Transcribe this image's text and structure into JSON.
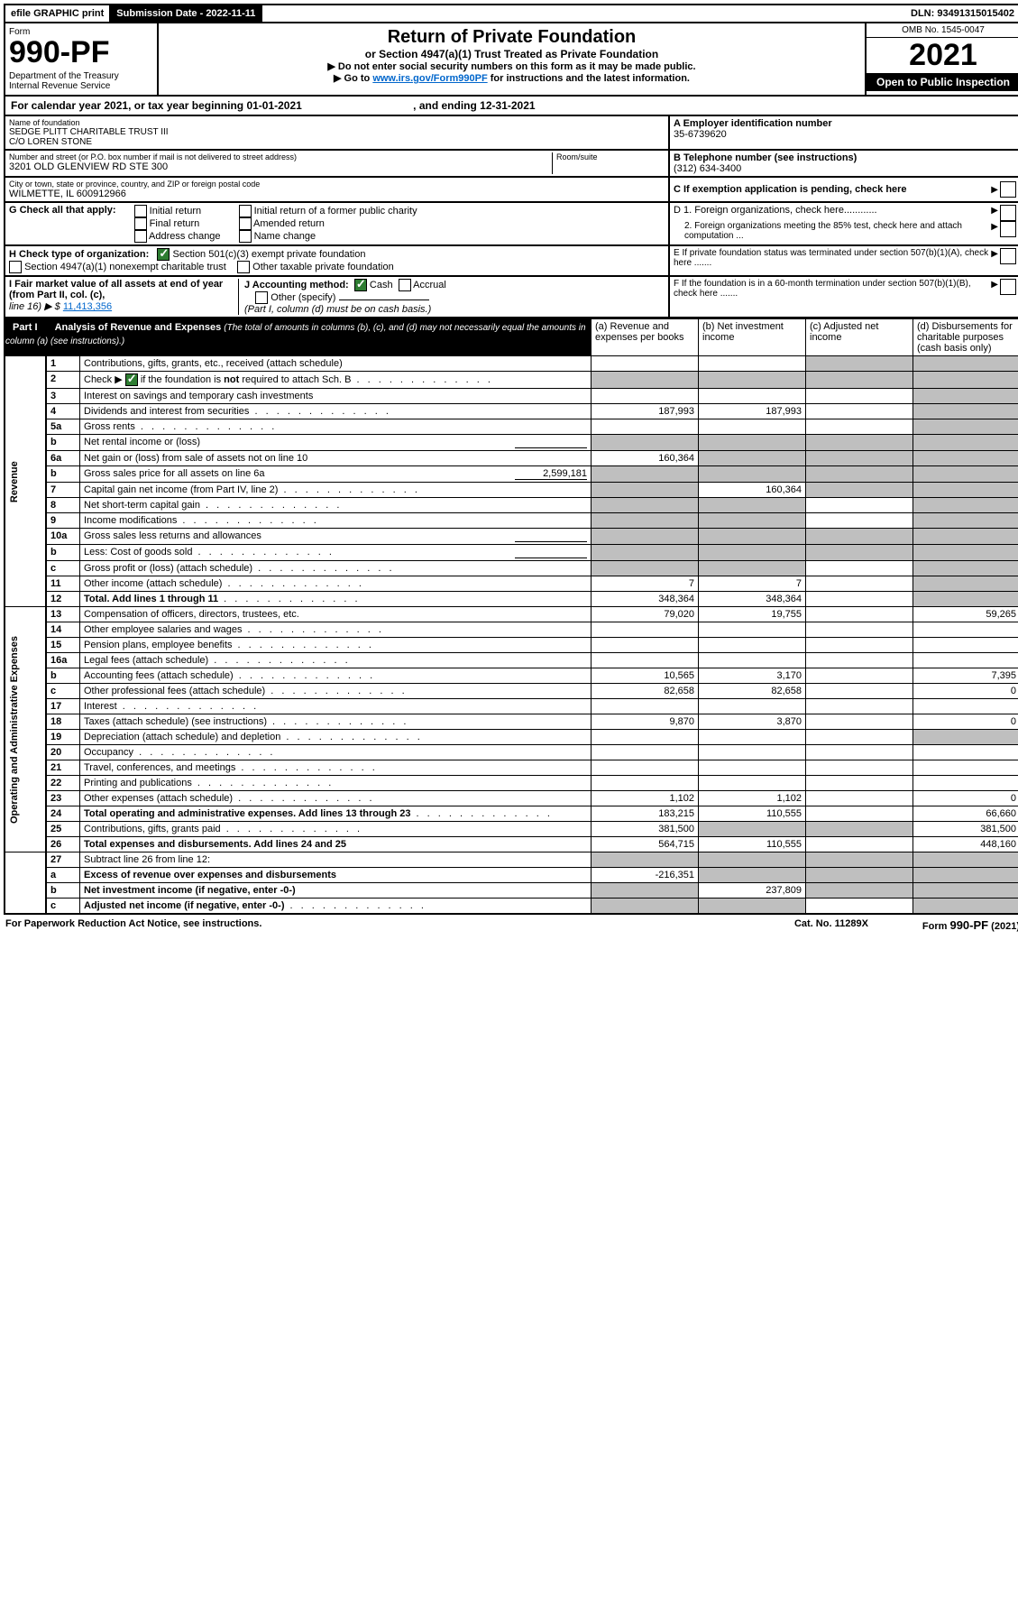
{
  "topbar": {
    "efile": "efile GRAPHIC print",
    "submission_label": "Submission Date - 2022-11-11",
    "dln": "DLN: 93491315015402"
  },
  "header": {
    "form_label": "Form",
    "form_number": "990-PF",
    "dept": "Department of the Treasury\nInternal Revenue Service",
    "title": "Return of Private Foundation",
    "subtitle": "or Section 4947(a)(1) Trust Treated as Private Foundation",
    "note1": "▶ Do not enter social security numbers on this form as it may be made public.",
    "note2_prefix": "▶ Go to ",
    "note2_link": "www.irs.gov/Form990PF",
    "note2_suffix": " for instructions and the latest information.",
    "omb": "OMB No. 1545-0047",
    "year": "2021",
    "open": "Open to Public Inspection"
  },
  "calyear": {
    "text": "For calendar year 2021, or tax year beginning 01-01-2021",
    "ending": ", and ending 12-31-2021"
  },
  "id": {
    "name_label": "Name of foundation",
    "name": "SEDGE PLITT CHARITABLE TRUST III\nC/O LOREN STONE",
    "addr_label": "Number and street (or P.O. box number if mail is not delivered to street address)",
    "addr": "3201 OLD GLENVIEW RD STE 300",
    "room_label": "Room/suite",
    "city_label": "City or town, state or province, country, and ZIP or foreign postal code",
    "city": "WILMETTE, IL  600912966",
    "a_label": "A Employer identification number",
    "a_val": "35-6739620",
    "b_label": "B Telephone number (see instructions)",
    "b_val": "(312) 634-3400",
    "c_label": "C If exemption application is pending, check here"
  },
  "g": {
    "label": "G Check all that apply:",
    "opts": [
      "Initial return",
      "Final return",
      "Address change",
      "Initial return of a former public charity",
      "Amended return",
      "Name change"
    ],
    "d1": "D 1. Foreign organizations, check here............",
    "d2": "2. Foreign organizations meeting the 85% test, check here and attach computation ...",
    "e": "E  If private foundation status was terminated under section 507(b)(1)(A), check here .......",
    "f": "F  If the foundation is in a 60-month termination under section 507(b)(1)(B), check here .......",
    "h_label": "H Check type of organization:",
    "h1": "Section 501(c)(3) exempt private foundation",
    "h2": "Section 4947(a)(1) nonexempt charitable trust",
    "h3": "Other taxable private foundation",
    "i_label": "I Fair market value of all assets at end of year (from Part II, col. (c),",
    "i_line": "line 16) ▶ $",
    "i_val": "11,413,356",
    "j_label": "J Accounting method:",
    "j_cash": "Cash",
    "j_accrual": "Accrual",
    "j_other": "Other (specify)",
    "j_note": "(Part I, column (d) must be on cash basis.)"
  },
  "part1": {
    "label": "Part I",
    "title": "Analysis of Revenue and Expenses",
    "title_note": "(The total of amounts in columns (b), (c), and (d) may not necessarily equal the amounts in column (a) (see instructions).)",
    "col_a": "(a)  Revenue and expenses per books",
    "col_b": "(b)  Net investment income",
    "col_c": "(c)  Adjusted net income",
    "col_d": "(d)  Disbursements for charitable purposes (cash basis only)",
    "revenue_label": "Revenue",
    "oae_label": "Operating and Administrative Expenses"
  },
  "lines": [
    {
      "n": "1",
      "d": "Contributions, gifts, grants, etc., received (attach schedule)",
      "a": "",
      "b": "",
      "c": "grey",
      "dcol": "grey"
    },
    {
      "n": "2",
      "d": "Check ▶ ☑ if the foundation is not required to attach Sch. B",
      "a": "grey",
      "b": "grey",
      "c": "grey",
      "dcol": "grey",
      "checked": true,
      "dots": true
    },
    {
      "n": "3",
      "d": "Interest on savings and temporary cash investments",
      "a": "",
      "b": "",
      "c": "",
      "dcol": "grey"
    },
    {
      "n": "4",
      "d": "Dividends and interest from securities",
      "a": "187,993",
      "b": "187,993",
      "c": "",
      "dcol": "grey",
      "dots": true
    },
    {
      "n": "5a",
      "d": "Gross rents",
      "a": "",
      "b": "",
      "c": "",
      "dcol": "grey",
      "dots": true
    },
    {
      "n": "b",
      "d": "Net rental income or (loss)",
      "a": "grey",
      "b": "grey",
      "c": "grey",
      "dcol": "grey",
      "inset": true
    },
    {
      "n": "6a",
      "d": "Net gain or (loss) from sale of assets not on line 10",
      "a": "160,364",
      "b": "grey",
      "c": "grey",
      "dcol": "grey"
    },
    {
      "n": "b",
      "d": "Gross sales price for all assets on line 6a",
      "a": "grey",
      "b": "grey",
      "c": "grey",
      "dcol": "grey",
      "inset": true,
      "inset_val": "2,599,181"
    },
    {
      "n": "7",
      "d": "Capital gain net income (from Part IV, line 2)",
      "a": "grey",
      "b": "160,364",
      "c": "grey",
      "dcol": "grey",
      "dots": true
    },
    {
      "n": "8",
      "d": "Net short-term capital gain",
      "a": "grey",
      "b": "grey",
      "c": "",
      "dcol": "grey",
      "dots": true
    },
    {
      "n": "9",
      "d": "Income modifications",
      "a": "grey",
      "b": "grey",
      "c": "",
      "dcol": "grey",
      "dots": true
    },
    {
      "n": "10a",
      "d": "Gross sales less returns and allowances",
      "a": "grey",
      "b": "grey",
      "c": "grey",
      "dcol": "grey",
      "inset": true
    },
    {
      "n": "b",
      "d": "Less: Cost of goods sold",
      "a": "grey",
      "b": "grey",
      "c": "grey",
      "dcol": "grey",
      "inset": true,
      "dots": true
    },
    {
      "n": "c",
      "d": "Gross profit or (loss) (attach schedule)",
      "a": "grey",
      "b": "grey",
      "c": "",
      "dcol": "grey",
      "dots": true
    },
    {
      "n": "11",
      "d": "Other income (attach schedule)",
      "a": "7",
      "b": "7",
      "c": "",
      "dcol": "grey",
      "dots": true
    },
    {
      "n": "12",
      "d": "Total. Add lines 1 through 11",
      "a": "348,364",
      "b": "348,364",
      "c": "",
      "dcol": "grey",
      "bold": true,
      "dots": true
    }
  ],
  "exp_lines": [
    {
      "n": "13",
      "d": "Compensation of officers, directors, trustees, etc.",
      "a": "79,020",
      "b": "19,755",
      "c": "",
      "dcol": "59,265"
    },
    {
      "n": "14",
      "d": "Other employee salaries and wages",
      "a": "",
      "b": "",
      "c": "",
      "dcol": "",
      "dots": true
    },
    {
      "n": "15",
      "d": "Pension plans, employee benefits",
      "a": "",
      "b": "",
      "c": "",
      "dcol": "",
      "dots": true
    },
    {
      "n": "16a",
      "d": "Legal fees (attach schedule)",
      "a": "",
      "b": "",
      "c": "",
      "dcol": "",
      "dots": true
    },
    {
      "n": "b",
      "d": "Accounting fees (attach schedule)",
      "a": "10,565",
      "b": "3,170",
      "c": "",
      "dcol": "7,395",
      "dots": true
    },
    {
      "n": "c",
      "d": "Other professional fees (attach schedule)",
      "a": "82,658",
      "b": "82,658",
      "c": "",
      "dcol": "0",
      "dots": true
    },
    {
      "n": "17",
      "d": "Interest",
      "a": "",
      "b": "",
      "c": "",
      "dcol": "",
      "dots": true
    },
    {
      "n": "18",
      "d": "Taxes (attach schedule) (see instructions)",
      "a": "9,870",
      "b": "3,870",
      "c": "",
      "dcol": "0",
      "dots": true
    },
    {
      "n": "19",
      "d": "Depreciation (attach schedule) and depletion",
      "a": "",
      "b": "",
      "c": "",
      "dcol": "grey",
      "dots": true
    },
    {
      "n": "20",
      "d": "Occupancy",
      "a": "",
      "b": "",
      "c": "",
      "dcol": "",
      "dots": true
    },
    {
      "n": "21",
      "d": "Travel, conferences, and meetings",
      "a": "",
      "b": "",
      "c": "",
      "dcol": "",
      "dots": true
    },
    {
      "n": "22",
      "d": "Printing and publications",
      "a": "",
      "b": "",
      "c": "",
      "dcol": "",
      "dots": true
    },
    {
      "n": "23",
      "d": "Other expenses (attach schedule)",
      "a": "1,102",
      "b": "1,102",
      "c": "",
      "dcol": "0",
      "dots": true
    },
    {
      "n": "24",
      "d": "Total operating and administrative expenses. Add lines 13 through 23",
      "a": "183,215",
      "b": "110,555",
      "c": "",
      "dcol": "66,660",
      "bold": true,
      "dots": true
    },
    {
      "n": "25",
      "d": "Contributions, gifts, grants paid",
      "a": "381,500",
      "b": "grey",
      "c": "grey",
      "dcol": "381,500",
      "dots": true
    },
    {
      "n": "26",
      "d": "Total expenses and disbursements. Add lines 24 and 25",
      "a": "564,715",
      "b": "110,555",
      "c": "",
      "dcol": "448,160",
      "bold": true
    }
  ],
  "bottom_lines": [
    {
      "n": "27",
      "d": "Subtract line 26 from line 12:",
      "a": "grey",
      "b": "grey",
      "c": "grey",
      "dcol": "grey"
    },
    {
      "n": "a",
      "d": "Excess of revenue over expenses and disbursements",
      "a": "-216,351",
      "b": "grey",
      "c": "grey",
      "dcol": "grey",
      "bold": true
    },
    {
      "n": "b",
      "d": "Net investment income (if negative, enter -0-)",
      "a": "grey",
      "b": "237,809",
      "c": "grey",
      "dcol": "grey",
      "bold": true
    },
    {
      "n": "c",
      "d": "Adjusted net income (if negative, enter -0-)",
      "a": "grey",
      "b": "grey",
      "c": "",
      "dcol": "grey",
      "bold": true,
      "dots": true
    }
  ],
  "footer": {
    "left": "For Paperwork Reduction Act Notice, see instructions.",
    "mid": "Cat. No. 11289X",
    "right": "Form 990-PF (2021)"
  },
  "colors": {
    "grey": "#bfbfbf",
    "link": "#0066cc",
    "check": "#2e7d32"
  }
}
